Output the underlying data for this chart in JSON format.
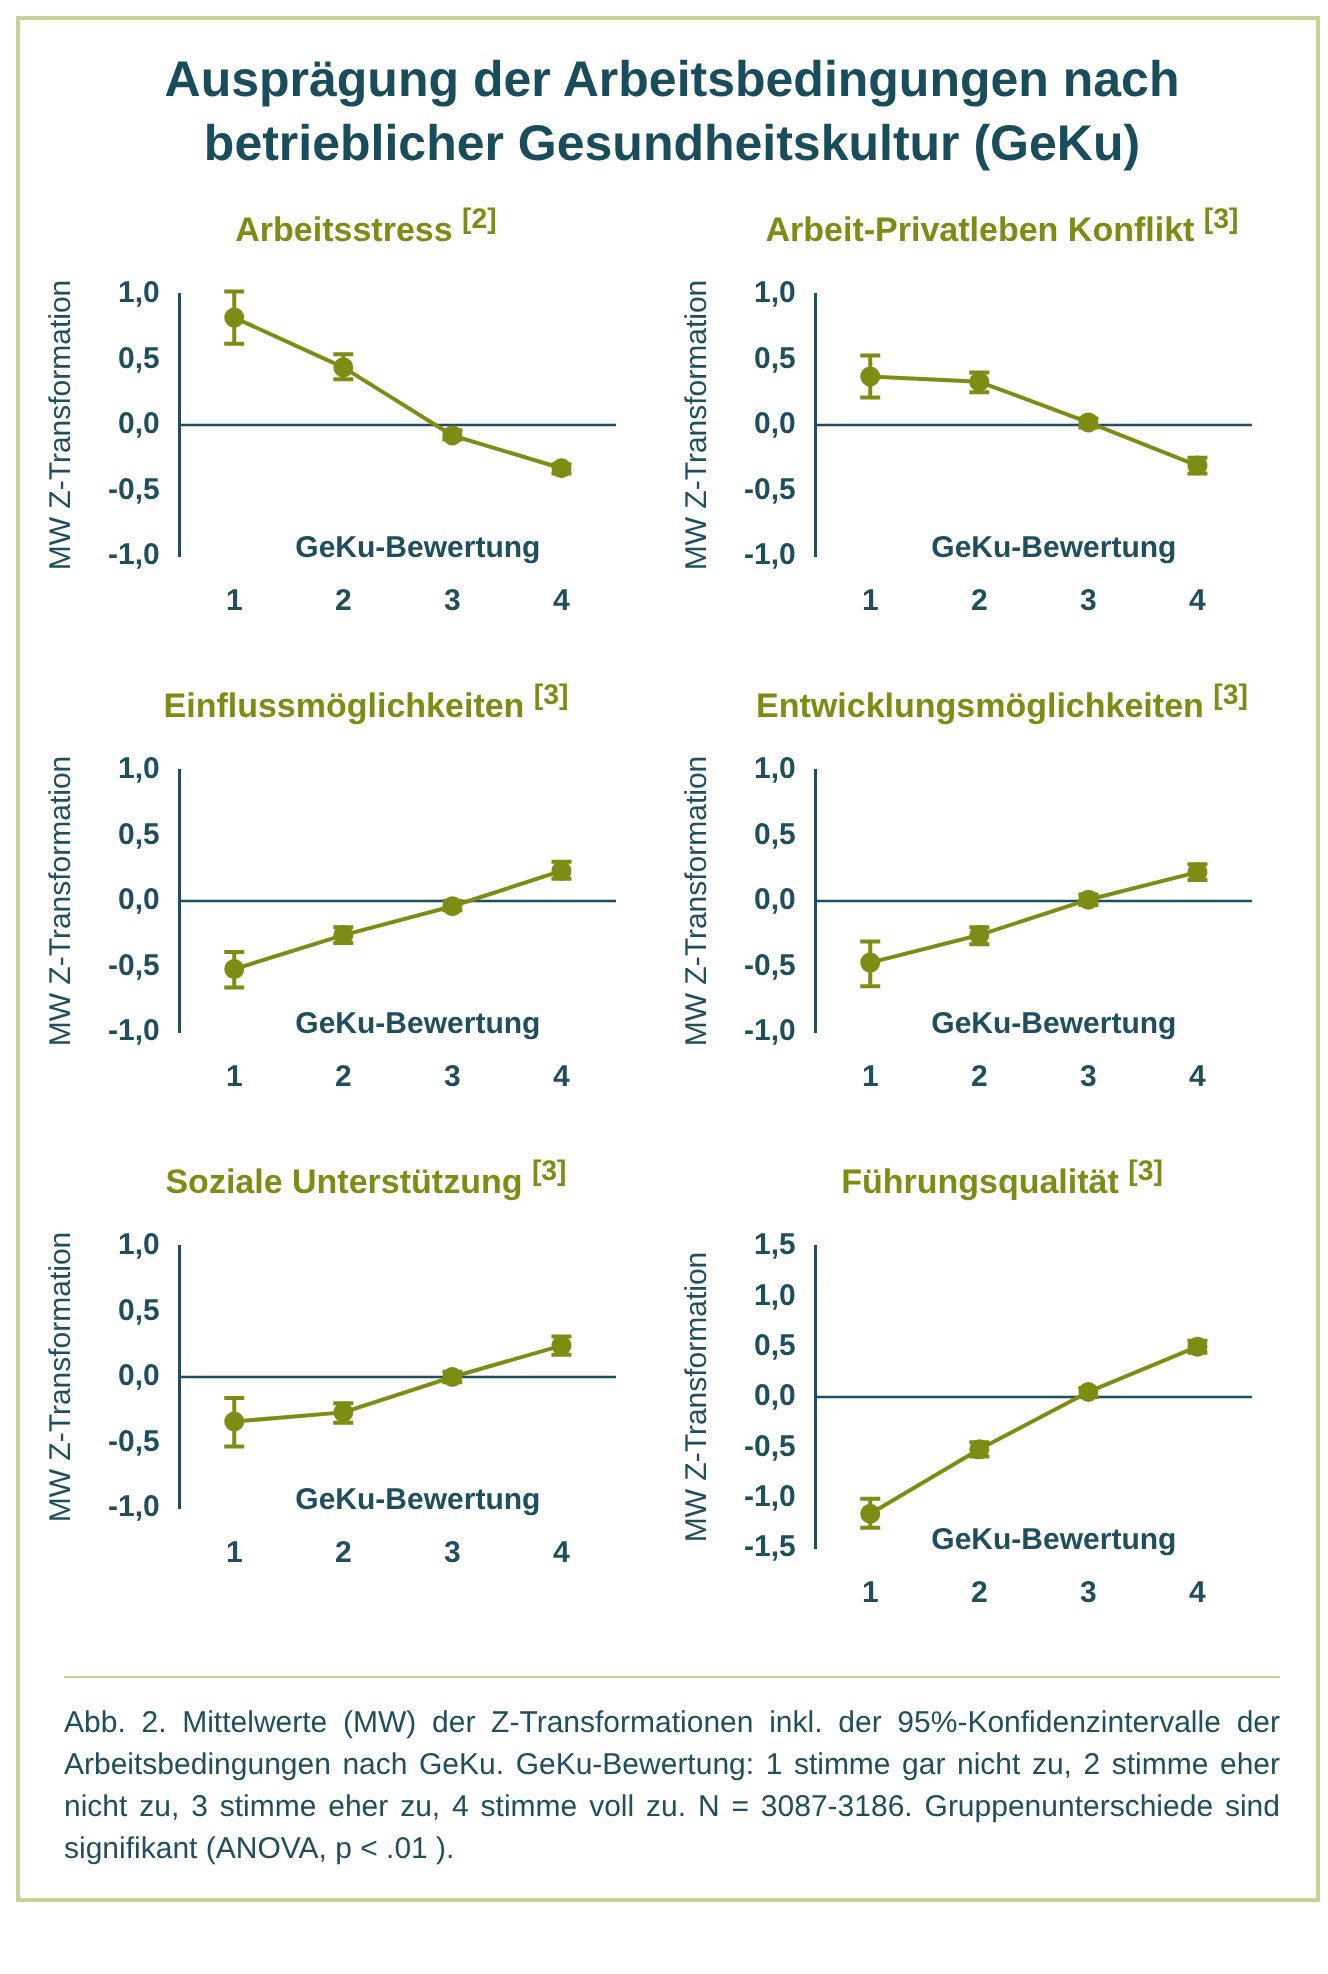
{
  "chart_data": [
    {
      "type": "line",
      "title": "Arbeitsstress $^{[2]}$",
      "xlabel": "GeKu-Bewertung",
      "ylabel": "MW Z-Transformation",
      "categories": [
        "1",
        "2",
        "3",
        "4"
      ],
      "values": [
        0.82,
        0.44,
        -0.08,
        -0.33
      ],
      "errors": [
        [
          0.62,
          1.02
        ],
        [
          0.35,
          0.54
        ],
        [
          -0.11,
          -0.04
        ],
        [
          -0.37,
          -0.3
        ]
      ],
      "color": "#7f8c14",
      "marker": "circle",
      "ylim": [
        -1,
        1
      ],
      "yticks": [
        {
          "value": -1,
          "label": "-1,0"
        },
        {
          "value": -0.5,
          "label": "-0,5"
        },
        {
          "value": 0,
          "label": "0,0"
        },
        {
          "value": 0.5,
          "label": "0,5"
        },
        {
          "value": 1,
          "label": "1,0"
        }
      ],
      "ref_lines": [
        {
          "axis": "y",
          "value": 0,
          "color": "#1f4e5f"
        }
      ],
      "annotations": [
        "Ausprägung der Arbeitsbedingungen nach betrieblicher Gesundheitskultur (GeKu)"
      ]
    },
    {
      "type": "line",
      "title": "Arbeit-Privatleben Konflikt $^{[3]}$",
      "xlabel": "GeKu-Bewertung",
      "ylabel": "MW Z-Transformation",
      "categories": [
        "1",
        "2",
        "3",
        "4"
      ],
      "values": [
        0.37,
        0.33,
        0.02,
        -0.31
      ],
      "errors": [
        [
          0.21,
          0.53
        ],
        [
          0.25,
          0.4
        ],
        [
          -0.02,
          0.05
        ],
        [
          -0.37,
          -0.25
        ]
      ],
      "color": "#7f8c14",
      "marker": "circle",
      "ylim": [
        -1,
        1
      ],
      "yticks": [
        {
          "value": -1,
          "label": "-1,0"
        },
        {
          "value": -0.5,
          "label": "-0,5"
        },
        {
          "value": 0,
          "label": "0,0"
        },
        {
          "value": 0.5,
          "label": "0,5"
        },
        {
          "value": 1,
          "label": "1,0"
        }
      ],
      "ref_lines": [
        {
          "axis": "y",
          "value": 0,
          "color": "#1f4e5f"
        }
      ]
    },
    {
      "type": "line",
      "title": "Einflussmöglichkeiten $^{[3]}$",
      "xlabel": "GeKu-Bewertung",
      "ylabel": "MW Z-Transformation",
      "categories": [
        "1",
        "2",
        "3",
        "4"
      ],
      "values": [
        -0.52,
        -0.26,
        -0.04,
        0.23
      ],
      "errors": [
        [
          -0.66,
          -0.39
        ],
        [
          -0.32,
          -0.2
        ],
        [
          -0.07,
          0
        ],
        [
          0.17,
          0.3
        ]
      ],
      "color": "#7f8c14",
      "marker": "circle",
      "ylim": [
        -1,
        1
      ],
      "yticks": [
        {
          "value": -1,
          "label": "-1,0"
        },
        {
          "value": -0.5,
          "label": "-0,5"
        },
        {
          "value": 0,
          "label": "0,0"
        },
        {
          "value": 0.5,
          "label": "0,5"
        },
        {
          "value": 1,
          "label": "1,0"
        }
      ],
      "ref_lines": [
        {
          "axis": "y",
          "value": 0,
          "color": "#1f4e5f"
        }
      ]
    },
    {
      "type": "line",
      "title": "Entwicklungsmöglichkeiten $^{[3]}$",
      "xlabel": "GeKu-Bewertung",
      "ylabel": "MW Z-Transformation",
      "categories": [
        "1",
        "2",
        "3",
        "4"
      ],
      "values": [
        -0.47,
        -0.26,
        0.01,
        0.22
      ],
      "errors": [
        [
          -0.65,
          -0.31
        ],
        [
          -0.33,
          -0.2
        ],
        [
          -0.03,
          0.05
        ],
        [
          0.16,
          0.28
        ]
      ],
      "color": "#7f8c14",
      "marker": "circle",
      "ylim": [
        -1,
        1
      ],
      "yticks": [
        {
          "value": -1,
          "label": "-1,0"
        },
        {
          "value": -0.5,
          "label": "-0,5"
        },
        {
          "value": 0,
          "label": "0,0"
        },
        {
          "value": 0.5,
          "label": "0,5"
        },
        {
          "value": 1,
          "label": "1,0"
        }
      ],
      "ref_lines": [
        {
          "axis": "y",
          "value": 0,
          "color": "#1f4e5f"
        }
      ]
    },
    {
      "type": "line",
      "title": "Soziale Unterstützung $^{[3]}$",
      "xlabel": "GeKu-Bewertung",
      "ylabel": "MW Z-Transformation",
      "categories": [
        "1",
        "2",
        "3",
        "4"
      ],
      "values": [
        -0.34,
        -0.27,
        0,
        0.24
      ],
      "errors": [
        [
          -0.53,
          -0.16
        ],
        [
          -0.35,
          -0.2
        ],
        [
          -0.04,
          0.04
        ],
        [
          0.17,
          0.31
        ]
      ],
      "color": "#7f8c14",
      "marker": "circle",
      "ylim": [
        -1,
        1
      ],
      "yticks": [
        {
          "value": -1,
          "label": "-1,0"
        },
        {
          "value": -0.5,
          "label": "-0,5"
        },
        {
          "value": 0,
          "label": "0,0"
        },
        {
          "value": 0.5,
          "label": "0,5"
        },
        {
          "value": 1,
          "label": "1,0"
        }
      ],
      "ref_lines": [
        {
          "axis": "y",
          "value": 0,
          "color": "#1f4e5f"
        }
      ]
    },
    {
      "type": "line",
      "title": "Führungsqualität $^{[3]}$",
      "xlabel": "GeKu-Bewertung",
      "ylabel": "MW Z-Transformation",
      "categories": [
        "1",
        "2",
        "3",
        "4"
      ],
      "values": [
        -1.16,
        -0.52,
        0.05,
        0.5
      ],
      "errors": [
        [
          -1.3,
          -1.01
        ],
        [
          -0.59,
          -0.45
        ],
        [
          0,
          0.09
        ],
        [
          0.44,
          0.56
        ]
      ],
      "color": "#7f8c14",
      "marker": "circle",
      "ylim": [
        -1.5,
        1.5
      ],
      "yticks": [
        {
          "value": -1.5,
          "label": "-1,5"
        },
        {
          "value": -1,
          "label": "-1,0"
        },
        {
          "value": -0.5,
          "label": "-0,5"
        },
        {
          "value": 0,
          "label": "0,0"
        },
        {
          "value": 0.5,
          "label": "0,5"
        },
        {
          "value": 1,
          "label": "1,0"
        },
        {
          "value": 1.5,
          "label": "1,5"
        }
      ],
      "ref_lines": [
        {
          "axis": "y",
          "value": 0,
          "color": "#1f4e5f"
        }
      ],
      "annotations": [
        "Abb. 2. Mittelwerte (MW) der Z-Transformationen inkl. der 95%-Konfidenzintervalle der Arbeitsbedingungen nach GeKu. GeKu-Bewertung: 1 stimme gar nicht zu, 2 stimme eher nicht zu, 3 stimme eher zu, 4 stimme voll zu. N = 3087-3186. Gruppenunterschiede sind signifikant (ANOVA, p < .01 )."
      ]
    }
  ]
}
